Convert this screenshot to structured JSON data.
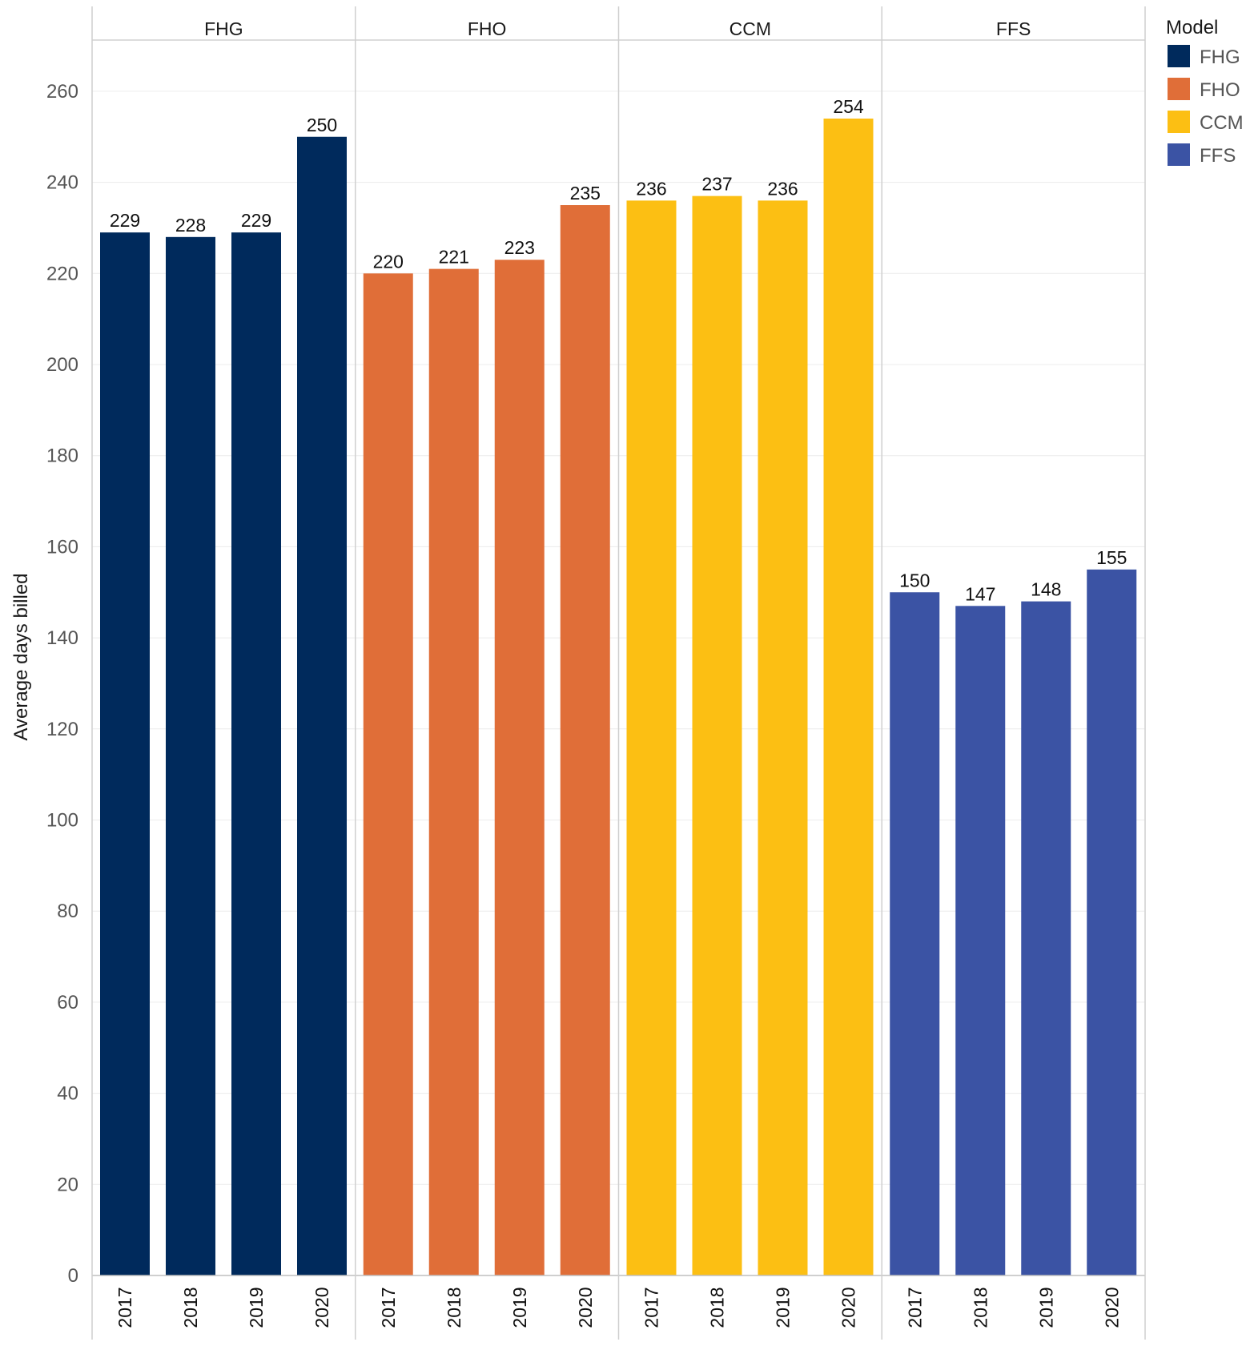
{
  "chart_data": {
    "type": "bar",
    "ylabel": "Average days billed",
    "ylim": [
      0,
      270
    ],
    "yticks": [
      0,
      20,
      40,
      60,
      80,
      100,
      120,
      140,
      160,
      180,
      200,
      220,
      240,
      260
    ],
    "gridlines": true,
    "categories": [
      "2017",
      "2018",
      "2019",
      "2020"
    ],
    "panels": [
      {
        "name": "FHG",
        "color": "#002a5c",
        "values": [
          229,
          228,
          229,
          250
        ],
        "labels": [
          "229",
          "228",
          "229",
          "250"
        ]
      },
      {
        "name": "FHO",
        "color": "#e06e38",
        "values": [
          220,
          221,
          223,
          235
        ],
        "labels": [
          "220",
          "221",
          "223",
          "235"
        ]
      },
      {
        "name": "CCM",
        "color": "#fcbf13",
        "values": [
          236,
          237,
          236,
          254
        ],
        "labels": [
          "236",
          "237",
          "236",
          "254"
        ]
      },
      {
        "name": "FFS",
        "color": "#3b53a4",
        "values": [
          150,
          147,
          148,
          155
        ],
        "labels": [
          "150",
          "147",
          "148",
          "155"
        ]
      }
    ],
    "legend": {
      "title": "Model",
      "position": "top-right",
      "items": [
        {
          "label": "FHG",
          "color": "#002a5c"
        },
        {
          "label": "FHO",
          "color": "#e06e38"
        },
        {
          "label": "CCM",
          "color": "#fcbf13"
        },
        {
          "label": "FFS",
          "color": "#3b53a4"
        }
      ]
    }
  }
}
